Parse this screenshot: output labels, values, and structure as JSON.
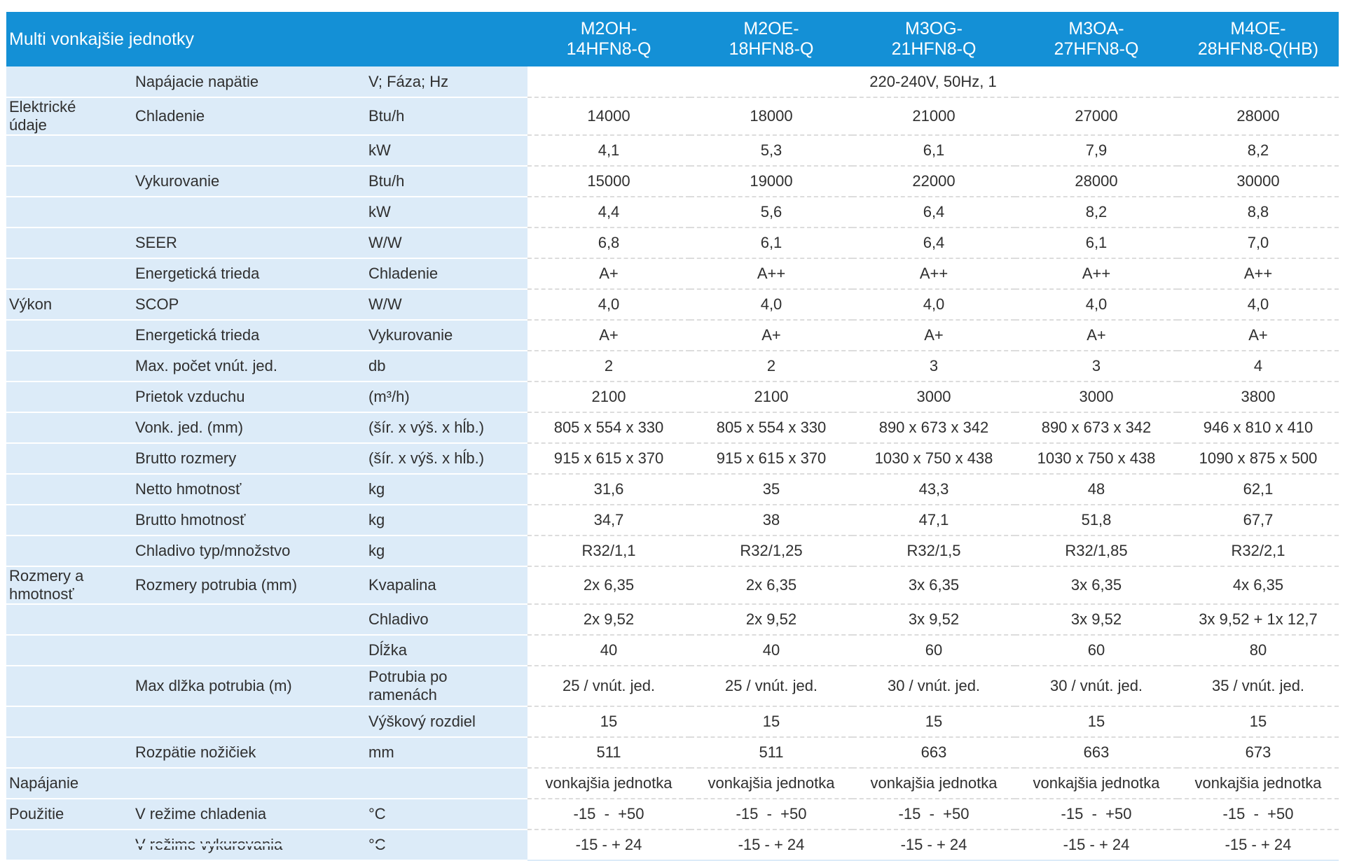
{
  "header": {
    "title": "Multi vonkajšie jednotky",
    "models": [
      "M2OH-\n14HFN8-Q",
      "M2OE-\n18HFN8-Q",
      "M3OG-\n21HFN8-Q",
      "M3OA-\n27HFN8-Q",
      "M4OE-\n28HFN8-Q(HB)"
    ]
  },
  "rows": [
    {
      "cat": "",
      "label": "Napájacie napätie",
      "unit": "V; Fáza; Hz",
      "values": [
        "220-240V, 50Hz, 1"
      ]
    },
    {
      "cat": "Elektrické\núdaje",
      "label": "Chladenie",
      "unit": "Btu/h",
      "values": [
        "14000",
        "18000",
        "21000",
        "27000",
        "28000"
      ]
    },
    {
      "cat": "",
      "label": "",
      "unit": "kW",
      "values": [
        "4,1",
        "5,3",
        "6,1",
        "7,9",
        "8,2"
      ]
    },
    {
      "cat": "",
      "label": "Vykurovanie",
      "unit": "Btu/h",
      "values": [
        "15000",
        "19000",
        "22000",
        "28000",
        "30000"
      ]
    },
    {
      "cat": "",
      "label": "",
      "unit": "kW",
      "values": [
        "4,4",
        "5,6",
        "6,4",
        "8,2",
        "8,8"
      ]
    },
    {
      "cat": "",
      "label": "SEER",
      "unit": "W/W",
      "values": [
        "6,8",
        "6,1",
        "6,4",
        "6,1",
        "7,0"
      ]
    },
    {
      "cat": "",
      "label": "Energetická trieda",
      "unit": "Chladenie",
      "values": [
        "A+",
        "A++",
        "A++",
        "A++",
        "A++"
      ]
    },
    {
      "cat": "Výkon",
      "label": "SCOP",
      "unit": "W/W",
      "values": [
        "4,0",
        "4,0",
        "4,0",
        "4,0",
        "4,0"
      ]
    },
    {
      "cat": "",
      "label": "Energetická trieda",
      "unit": "Vykurovanie",
      "values": [
        "A+",
        "A+",
        "A+",
        "A+",
        "A+"
      ]
    },
    {
      "cat": "",
      "label": "Max. počet vnút. jed.",
      "unit": "db",
      "values": [
        "2",
        "2",
        "3",
        "3",
        "4"
      ]
    },
    {
      "cat": "",
      "label": "Prietok vzduchu",
      "unit": "(m³/h)",
      "values": [
        "2100",
        "2100",
        "3000",
        "3000",
        "3800"
      ]
    },
    {
      "cat": "",
      "label": "Vonk. jed. (mm)",
      "unit": "(šír. x výš. x hĺb.)",
      "values": [
        "805 x 554 x 330",
        "805 x 554 x 330",
        "890 x 673 x 342",
        "890 x 673 x 342",
        "946 x 810 x 410"
      ]
    },
    {
      "cat": "",
      "label": "Brutto rozmery",
      "unit": "(šír. x výš. x hĺb.)",
      "values": [
        "915 x 615 x 370",
        "915 x 615 x 370",
        "1030 x 750 x 438",
        "1030 x 750 x 438",
        "1090 x 875 x 500"
      ]
    },
    {
      "cat": "",
      "label": "Netto hmotnosť",
      "unit": "kg",
      "values": [
        "31,6",
        "35",
        "43,3",
        "48",
        "62,1"
      ]
    },
    {
      "cat": "",
      "label": "Brutto hmotnosť",
      "unit": "kg",
      "values": [
        "34,7",
        "38",
        "47,1",
        "51,8",
        "67,7"
      ]
    },
    {
      "cat": "",
      "label": "Chladivo typ/množstvo",
      "unit": "kg",
      "values": [
        "R32/1,1",
        "R32/1,25",
        "R32/1,5",
        "R32/1,85",
        "R32/2,1"
      ]
    },
    {
      "cat": "Rozmery a\nhmotnosť",
      "label": "Rozmery potrubia (mm)",
      "unit": "Kvapalina",
      "values": [
        "2x 6,35",
        "2x 6,35",
        "3x 6,35",
        "3x 6,35",
        "4x 6,35"
      ]
    },
    {
      "cat": "",
      "label": "",
      "unit": "Chladivo",
      "values": [
        "2x 9,52",
        "2x 9,52",
        "3x 9,52",
        "3x 9,52",
        "3x 9,52 + 1x 12,7"
      ]
    },
    {
      "cat": "",
      "label": "",
      "unit": "Dĺžka",
      "values": [
        "40",
        "40",
        "60",
        "60",
        "80"
      ]
    },
    {
      "cat": "",
      "label": "Max dlžka potrubia (m)",
      "unit": "Potrubia po\nramenách",
      "values": [
        "25 / vnút. jed.",
        "25 / vnút. jed.",
        "30 / vnút. jed.",
        "30 / vnút. jed.",
        "35 / vnút. jed."
      ]
    },
    {
      "cat": "",
      "label": "",
      "unit": "Výškový rozdiel",
      "values": [
        "15",
        "15",
        "15",
        "15",
        "15"
      ]
    },
    {
      "cat": "",
      "label": "Rozpätie nožičiek",
      "unit": "mm",
      "values": [
        "511",
        "511",
        "663",
        "663",
        "673"
      ]
    },
    {
      "cat": "Napájanie",
      "label": "",
      "unit": "",
      "values": [
        "vonkajšia jednotka",
        "vonkajšia jednotka",
        "vonkajšia jednotka",
        "vonkajšia jednotka",
        "vonkajšia jednotka"
      ]
    },
    {
      "cat": "Použitie",
      "label": "V režime chladenia",
      "unit": "°C",
      "values": [
        "-15  -  +50",
        "-15  -  +50",
        "-15  -  +50",
        "-15  -  +50",
        "-15  -  +50"
      ]
    },
    {
      "cat": "",
      "label": "V režime vykurovania",
      "unit": "°C",
      "values": [
        "-15 - + 24",
        "-15 - + 24",
        "-15 - + 24",
        "-15 - + 24",
        "-15 - + 24"
      ]
    }
  ]
}
